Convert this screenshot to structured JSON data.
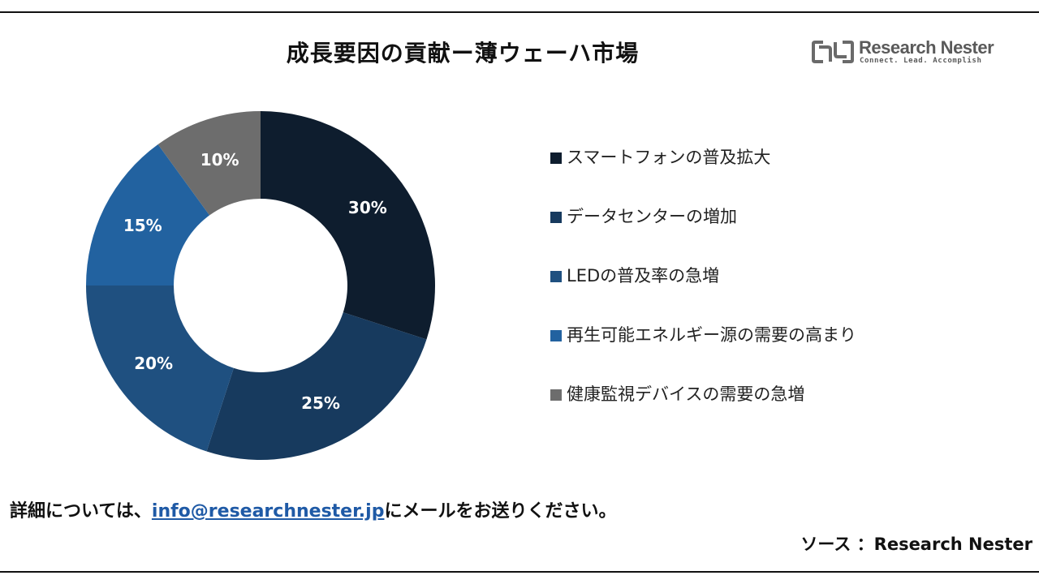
{
  "chart_data": {
    "type": "pie",
    "variant": "donut",
    "title": "成長要因の貢献ー薄ウェーハ市場",
    "categories": [
      "スマートフォンの普及拡大",
      "データセンターの増加",
      "LEDの普及率の急増",
      "再生可能エネルギー源の需要の高まり",
      "健康監視デバイスの需要の急増"
    ],
    "values": [
      30,
      25,
      20,
      15,
      10
    ],
    "labels": [
      "30%",
      "25%",
      "20%",
      "15%",
      "10%"
    ],
    "colors": [
      "#0e1d2e",
      "#173a5e",
      "#1f5080",
      "#2262a0",
      "#6d6d6d"
    ],
    "legend_position": "right"
  },
  "brand": {
    "name": "Research Nester",
    "tagline": "Connect. Lead. Accomplish"
  },
  "footer": {
    "prefix": "詳細については、",
    "email": "info@researchnester.jp",
    "suffix": "にメールをお送りください。",
    "source": "ソース ：Research Nester"
  }
}
